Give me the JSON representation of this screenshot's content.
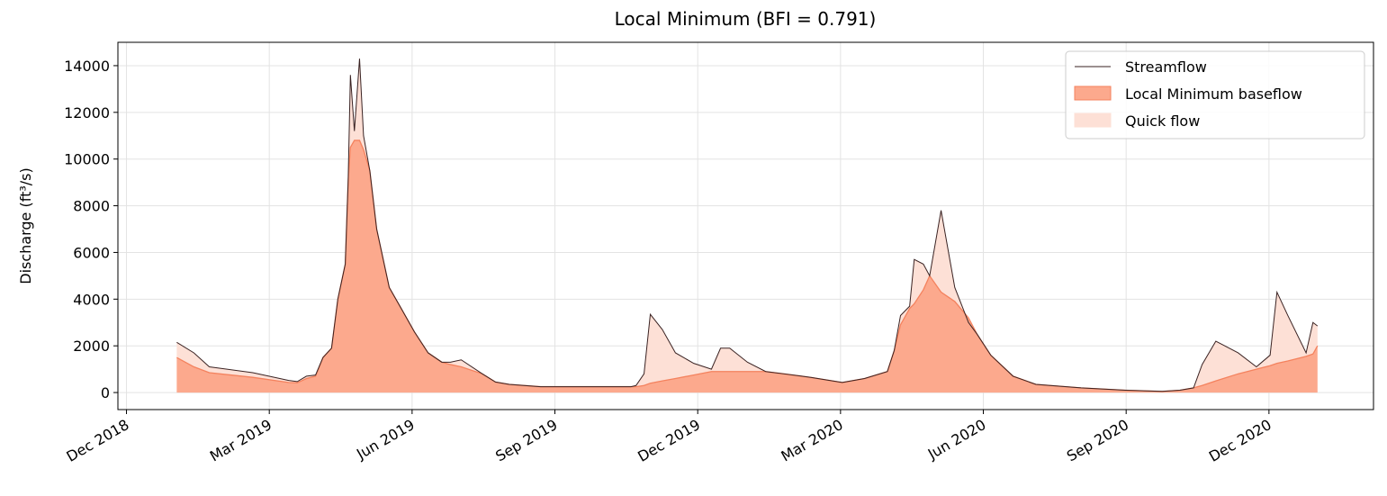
{
  "chart_data": {
    "type": "baseflow",
    "title": "Local Minimum (BFI = 0.791)",
    "y_label": "Discharge (ft³/s)",
    "x": [
      2019.005,
      2019.035,
      2019.062,
      2019.138,
      2019.201,
      2019.216,
      2019.232,
      2019.248,
      2019.261,
      2019.276,
      2019.287,
      2019.3,
      2019.305,
      2019.309,
      2019.316,
      2019.325,
      2019.332,
      2019.343,
      2019.355,
      2019.377,
      2019.398,
      2019.421,
      2019.445,
      2019.469,
      2019.484,
      2019.503,
      2019.54,
      2019.563,
      2019.587,
      2019.642,
      2019.721,
      2019.8,
      2019.809,
      2019.823,
      2019.834,
      2019.855,
      2019.878,
      2019.91,
      2019.941,
      2019.957,
      2019.973,
      2020.004,
      2020.036,
      2020.068,
      2020.115,
      2020.17,
      2020.209,
      2020.249,
      2020.261,
      2020.272,
      2020.288,
      2020.296,
      2020.312,
      2020.323,
      2020.343,
      2020.367,
      2020.391,
      2020.406,
      2020.43,
      2020.469,
      2020.509,
      2020.588,
      2020.666,
      2020.73,
      2020.761,
      2020.785,
      2020.8,
      2020.824,
      2020.863,
      2020.895,
      2020.919,
      2020.931,
      2020.95,
      2020.982,
      2020.994,
      2021.002
    ],
    "series": [
      {
        "name": "Streamflow",
        "color": "#3a2323",
        "values": [
          2150,
          1700,
          1100,
          850,
          520,
          470,
          700,
          750,
          1500,
          1900,
          4000,
          5500,
          9000,
          13600,
          11200,
          14300,
          11000,
          9500,
          7000,
          4500,
          3600,
          2600,
          1700,
          1300,
          1300,
          1400,
          800,
          450,
          350,
          250,
          250,
          250,
          300,
          800,
          3350,
          2700,
          1700,
          1250,
          1000,
          1900,
          1900,
          1300,
          900,
          800,
          650,
          430,
          600,
          900,
          1800,
          3300,
          3700,
          5700,
          5500,
          5000,
          7800,
          4500,
          3000,
          2500,
          1600,
          700,
          350,
          200,
          100,
          50,
          100,
          200,
          1200,
          2200,
          1700,
          1100,
          1600,
          4300,
          3300,
          1700,
          3000,
          2850
        ]
      },
      {
        "name": "Local Minimum baseflow",
        "color": "#fca98d",
        "edge": "#f4825e",
        "values": [
          1500,
          1100,
          850,
          650,
          430,
          420,
          600,
          700,
          1500,
          1900,
          4000,
          5500,
          9000,
          10500,
          10800,
          10800,
          10400,
          9500,
          7000,
          4500,
          3600,
          2600,
          1700,
          1300,
          1200,
          1100,
          800,
          450,
          350,
          250,
          250,
          250,
          250,
          300,
          400,
          500,
          600,
          750,
          900,
          900,
          900,
          900,
          900,
          800,
          650,
          430,
          600,
          900,
          1800,
          2900,
          3600,
          3800,
          4400,
          5000,
          4300,
          3900,
          3200,
          2500,
          1600,
          700,
          350,
          200,
          100,
          50,
          100,
          200,
          300,
          500,
          800,
          1000,
          1150,
          1250,
          1350,
          1550,
          1650,
          2000
        ]
      },
      {
        "name": "Quick flow",
        "color": "#fde0d6"
      }
    ],
    "xlim": [
      2018.902,
      2021.1
    ],
    "xticks": [
      {
        "value": 2018.917,
        "label": "Dec 2018"
      },
      {
        "value": 2019.167,
        "label": "Mar 2019"
      },
      {
        "value": 2019.417,
        "label": "Jun 2019"
      },
      {
        "value": 2019.667,
        "label": "Sep 2019"
      },
      {
        "value": 2019.917,
        "label": "Dec 2019"
      },
      {
        "value": 2020.167,
        "label": "Mar 2020"
      },
      {
        "value": 2020.417,
        "label": "Jun 2020"
      },
      {
        "value": 2020.667,
        "label": "Sep 2020"
      },
      {
        "value": 2020.917,
        "label": "Dec 2020"
      }
    ],
    "ylim": [
      -730,
      15000
    ],
    "yticks": [
      0,
      2000,
      4000,
      6000,
      8000,
      10000,
      12000,
      14000
    ],
    "grid": true,
    "legend": "upper right"
  }
}
